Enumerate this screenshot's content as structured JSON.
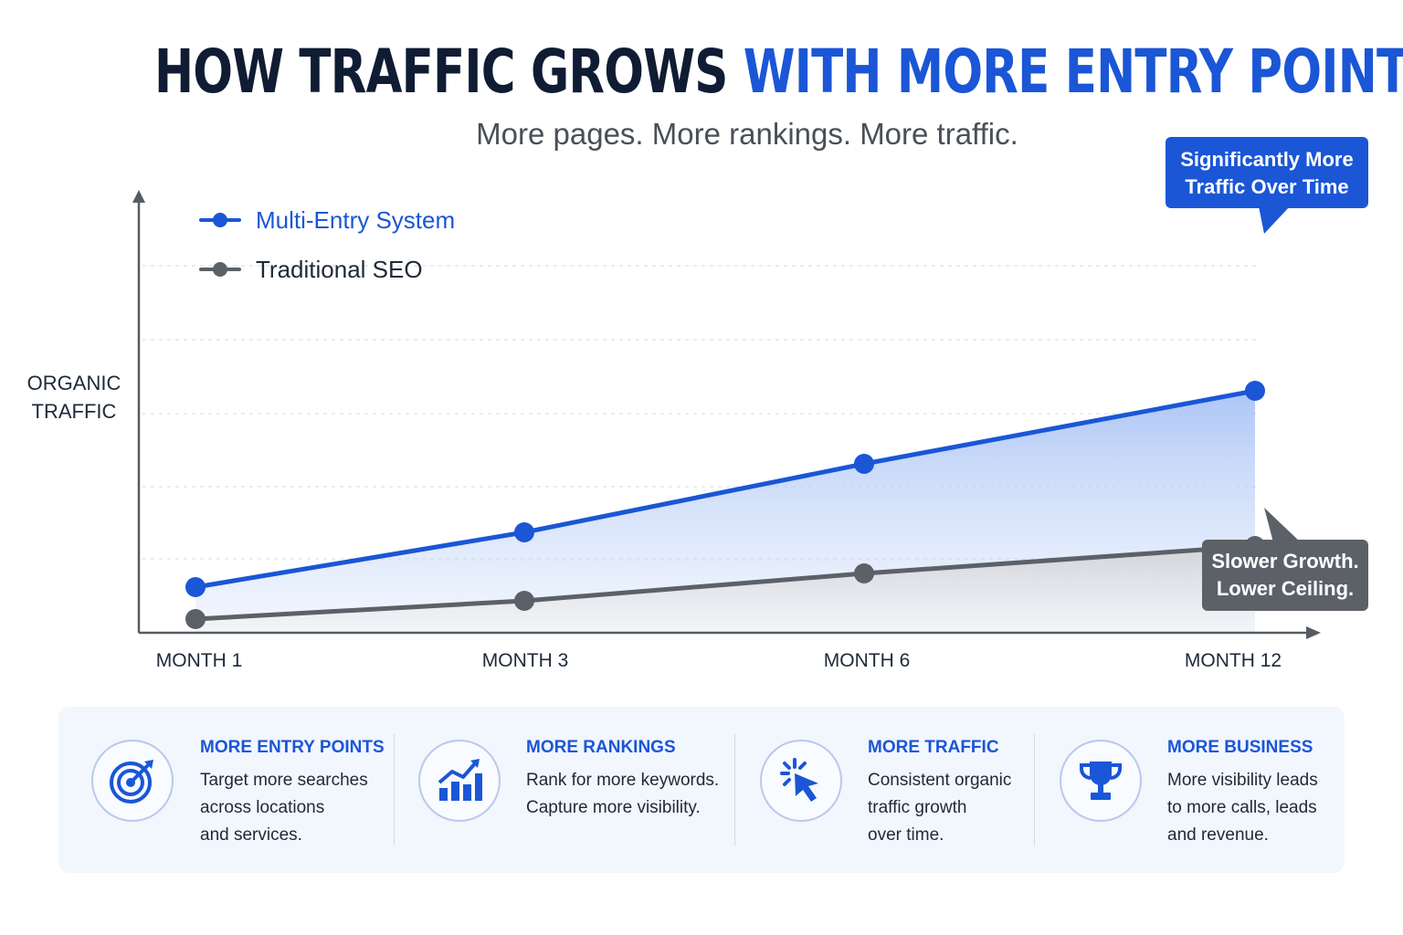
{
  "header": {
    "title_dark": "HOW TRAFFIC GROWS",
    "title_blue": "WITH MORE ENTRY POINTS",
    "subtitle": "More pages. More rankings. More traffic."
  },
  "colors": {
    "accent_blue": "#1a56d6",
    "series_gray": "#5c6168",
    "title_dark": "#0f1c33"
  },
  "chart_data": {
    "type": "line",
    "ylabel": "ORGANIC TRAFFIC",
    "xlabel": "",
    "categories": [
      "MONTH 1",
      "MONTH 3",
      "MONTH 6",
      "MONTH 12"
    ],
    "ylim": [
      0,
      10
    ],
    "grid": true,
    "legend_position": "top-left",
    "series": [
      {
        "name": "Multi-Entry System",
        "values": [
          1.0,
          2.2,
          3.7,
          5.3
        ],
        "color": "#1a56d6"
      },
      {
        "name": "Traditional SEO",
        "values": [
          0.3,
          0.7,
          1.3,
          1.9
        ],
        "color": "#5c6168"
      }
    ],
    "annotations": [
      {
        "text": "Significantly More Traffic Over Time",
        "target_series": "Multi-Entry System",
        "target_category": "MONTH 12"
      },
      {
        "text": "Slower Growth. Lower Ceiling.",
        "target_series": "Traditional SEO",
        "target_category": "MONTH 12"
      }
    ]
  },
  "callouts": {
    "blue_line1": "Significantly More",
    "blue_line2": "Traffic Over Time",
    "gray_line1": "Slower Growth.",
    "gray_line2": "Lower Ceiling."
  },
  "features": [
    {
      "icon": "target-icon",
      "title": "MORE ENTRY POINTS",
      "description": "Target more searches\nacross locations\nand services."
    },
    {
      "icon": "growth-chart-icon",
      "title": "MORE RANKINGS",
      "description": "Rank for more keywords.\nCapture more visibility."
    },
    {
      "icon": "cursor-click-icon",
      "title": "MORE TRAFFIC",
      "description": "Consistent organic\ntraffic growth\nover time."
    },
    {
      "icon": "trophy-icon",
      "title": "MORE BUSINESS",
      "description": "More visibility leads\nto more calls, leads\nand revenue."
    }
  ]
}
